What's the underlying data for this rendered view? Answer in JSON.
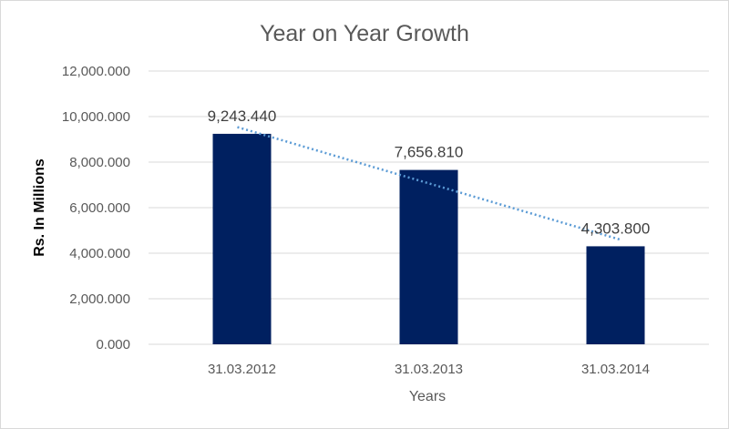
{
  "chart_data": {
    "type": "bar",
    "title": "Year on Year Growth",
    "xlabel": "Years",
    "ylabel": "Rs. In Millions",
    "categories": [
      "31.03.2012",
      "31.03.2013",
      "31.03.2014"
    ],
    "values": [
      9243.44,
      7656.81,
      4303.8
    ],
    "data_labels": [
      "9,243.440",
      "7,656.810",
      "4,303.800"
    ],
    "ylim": [
      0,
      12000
    ],
    "yticks": [
      0,
      2000,
      4000,
      6000,
      8000,
      10000,
      12000
    ],
    "ytick_labels": [
      "0.000",
      "2,000.000",
      "4,000.000",
      "6,000.000",
      "8,000.000",
      "10,000.000",
      "12,000.000"
    ],
    "trendline": {
      "type": "linear",
      "style": "dotted"
    },
    "grid": true,
    "legend": "none",
    "colors": {
      "bar": "#002060",
      "trendline": "#5b9bd5",
      "grid": "#d9d9d9",
      "text": "#595959"
    }
  }
}
